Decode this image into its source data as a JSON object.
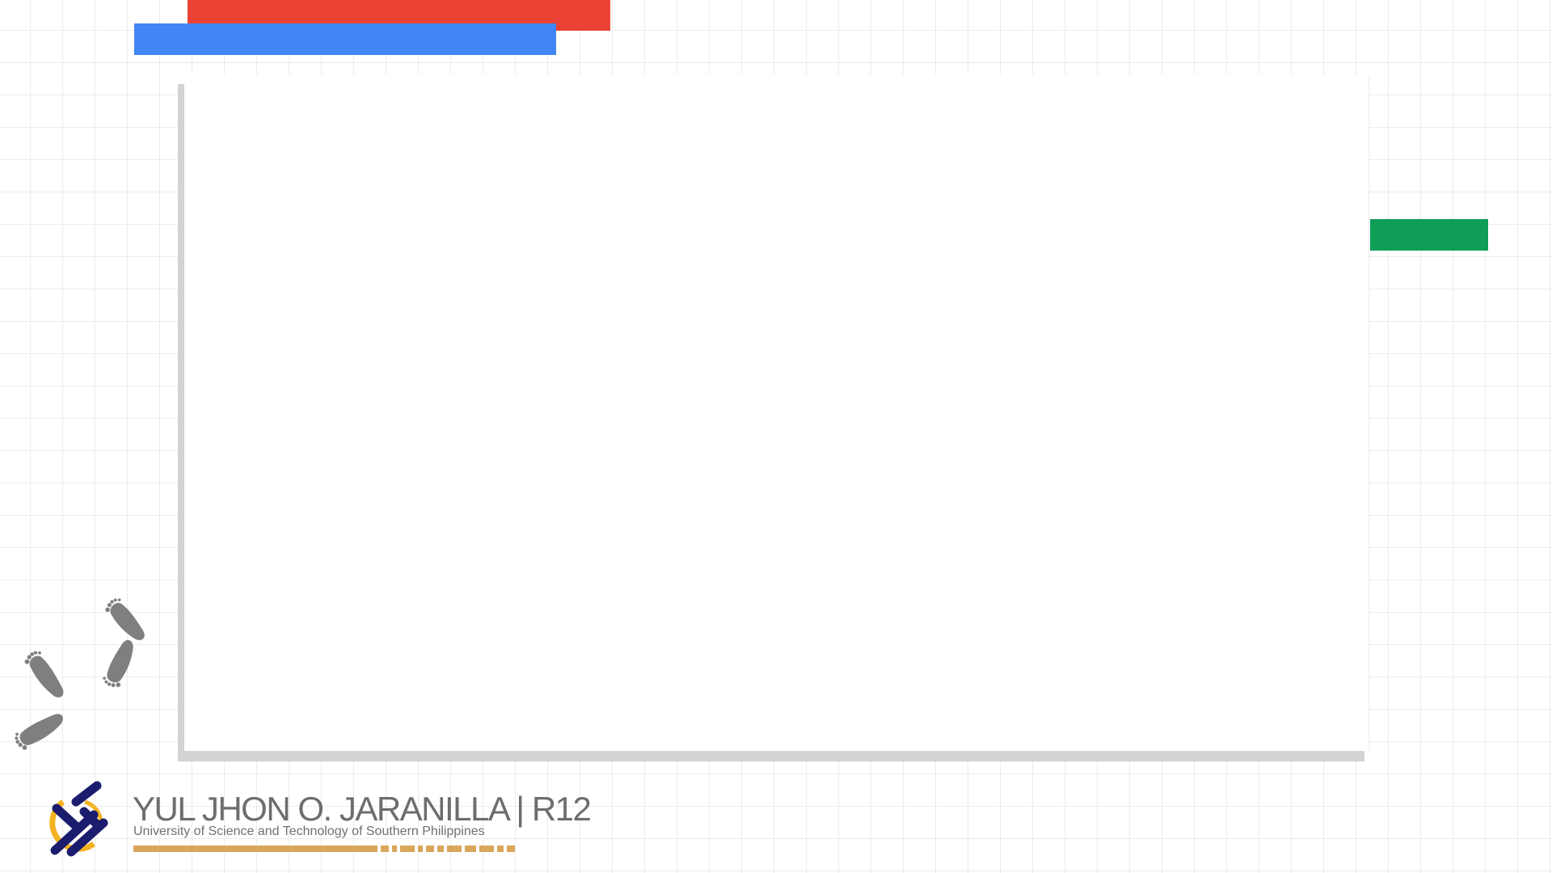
{
  "decor": {
    "colors": {
      "red": "#ea4335",
      "blue": "#4285f4",
      "green": "#0f9d58",
      "gold": "#d9a65a",
      "footprint": "#7f7f7f",
      "logo_navy": "#1c1c6e",
      "logo_gold": "#f4b321"
    },
    "icons": [
      "footprints-icon",
      "usep-logo"
    ]
  },
  "footer": {
    "name": "YUL JHON O. JARANILLA | R12",
    "subtitle": "University of Science and Technology of Southern Philippines"
  }
}
